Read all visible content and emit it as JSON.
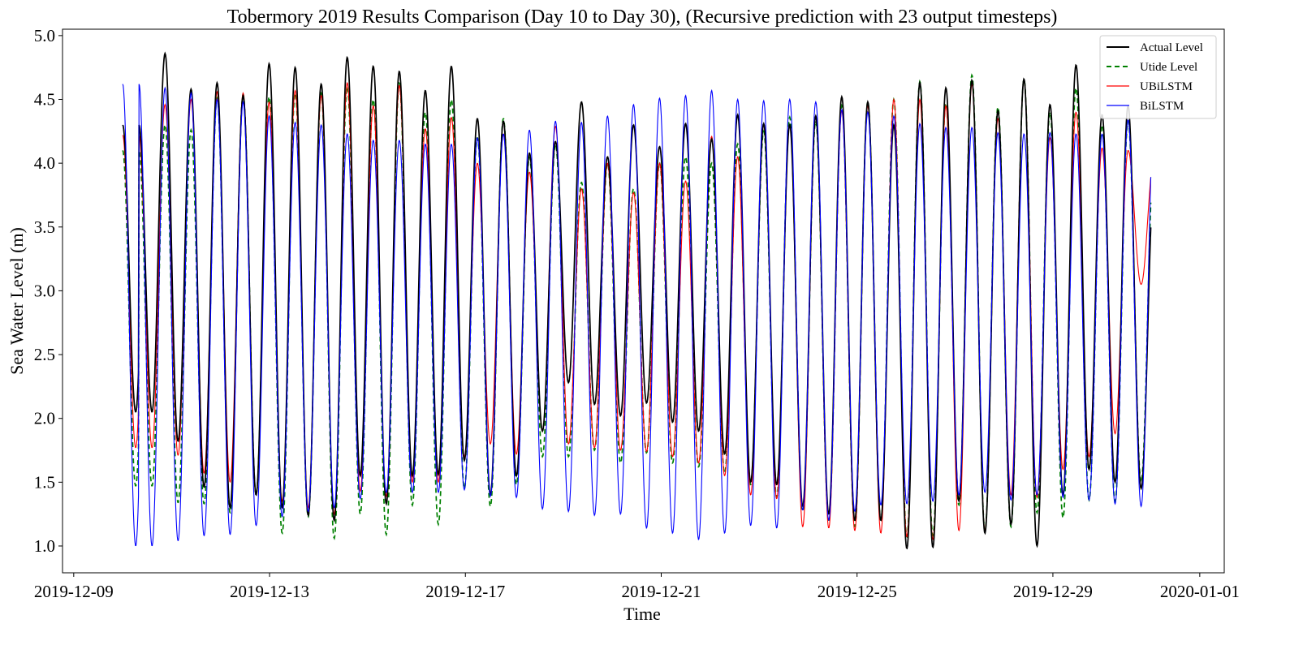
{
  "chart_data": {
    "type": "line",
    "title": "Tobermory 2019 Results Comparison (Day 10 to Day 30), (Recursive prediction with 23 output timesteps)",
    "xlabel": "Time",
    "ylabel": "Sea Water Level (m)",
    "xlim": [
      "2019-12-08T18:30",
      "2020-01-01T12:00"
    ],
    "ylim": [
      0.79,
      5.05
    ],
    "x_ticks": [
      "2019-12-09",
      "2019-12-13",
      "2019-12-17",
      "2019-12-21",
      "2019-12-25",
      "2019-12-29",
      "2020-01-01"
    ],
    "y_ticks": [
      "1.0",
      "1.5",
      "2.0",
      "2.5",
      "3.0",
      "3.5",
      "4.0",
      "4.5",
      "5.0"
    ],
    "grid": false,
    "legend_position": "upper right",
    "x_range": [
      "2019-12-10T00:00",
      "2019-12-31T00:00"
    ],
    "sampling": "hourly, semidiurnal tide (period ≈ 12.42 h)",
    "series": [
      {
        "name": "Actual Level",
        "color": "#000000",
        "style": "solid",
        "high_water_m": [
          4.3,
          4.86,
          4.58,
          4.63,
          4.53,
          4.78,
          4.75,
          4.62,
          4.83,
          4.76,
          4.72,
          4.57,
          4.76,
          4.35,
          4.33,
          4.08,
          4.17,
          4.48,
          4.05,
          4.3,
          4.13,
          4.31,
          4.19,
          4.38,
          4.31,
          4.3,
          4.37,
          4.52,
          4.48,
          4.3,
          4.63,
          4.59,
          4.65,
          4.41,
          4.66,
          4.46,
          4.77,
          4.38,
          4.45,
          3.86
        ],
        "low_water_m": [
          2.05,
          1.82,
          1.46,
          1.3,
          1.4,
          1.3,
          1.24,
          1.2,
          1.55,
          1.33,
          1.55,
          1.56,
          1.67,
          1.4,
          1.55,
          1.9,
          2.28,
          2.11,
          2.02,
          2.12,
          1.97,
          1.9,
          1.72,
          1.5,
          1.48,
          1.31,
          1.25,
          1.2,
          1.2,
          0.98,
          0.99,
          1.35,
          1.1,
          1.17,
          1.0,
          1.4,
          1.6,
          1.5,
          1.45
        ]
      },
      {
        "name": "Utide Level",
        "color": "#008000",
        "style": "dashed",
        "high_water_m": [
          4.1,
          4.3,
          4.26,
          4.51,
          4.54,
          4.52,
          4.55,
          4.55,
          4.6,
          4.5,
          4.63,
          4.4,
          4.5,
          4.2,
          4.35,
          4.05,
          4.15,
          3.85,
          4.0,
          3.8,
          4.0,
          4.05,
          4.0,
          4.15,
          4.25,
          4.36,
          4.33,
          4.45,
          4.48,
          4.5,
          4.64,
          4.47,
          4.69,
          4.44,
          4.66,
          4.4,
          4.59,
          4.3,
          4.33,
          4.08
        ],
        "low_water_m": [
          1.47,
          1.34,
          1.33,
          1.26,
          1.4,
          1.1,
          1.23,
          1.06,
          1.25,
          1.09,
          1.32,
          1.17,
          1.45,
          1.31,
          1.48,
          1.7,
          1.7,
          1.75,
          1.65,
          1.73,
          1.65,
          1.62,
          1.57,
          1.48,
          1.38,
          1.27,
          1.2,
          1.15,
          1.2,
          1.07,
          1.08,
          1.32,
          1.12,
          1.15,
          1.26,
          1.22,
          1.36,
          1.35,
          1.5
        ]
      },
      {
        "name": "UBiLSTM",
        "color": "#ff0000",
        "style": "solid",
        "high_water_m": [
          4.22,
          4.46,
          4.5,
          4.56,
          4.55,
          4.48,
          4.57,
          4.53,
          4.63,
          4.45,
          4.61,
          4.27,
          4.36,
          4.0,
          4.23,
          3.93,
          4.29,
          3.8,
          4.0,
          3.77,
          4.0,
          3.86,
          4.21,
          4.05,
          4.3,
          4.3,
          4.36,
          4.41,
          4.45,
          4.5,
          4.5,
          4.45,
          4.62,
          4.35,
          4.65,
          4.2,
          4.4,
          4.12,
          4.1,
          4.04
        ],
        "low_water_m": [
          1.77,
          1.71,
          1.57,
          1.5,
          1.4,
          1.35,
          1.3,
          1.25,
          1.43,
          1.39,
          1.5,
          1.5,
          1.7,
          1.8,
          1.72,
          1.9,
          1.8,
          1.77,
          1.75,
          1.74,
          1.7,
          1.65,
          1.55,
          1.4,
          1.37,
          1.15,
          1.14,
          1.12,
          1.1,
          1.07,
          1.05,
          1.12,
          1.12,
          1.4,
          1.38,
          1.6,
          1.7,
          1.88,
          3.05
        ]
      },
      {
        "name": "BiLSTM",
        "color": "#0000ff",
        "style": "solid",
        "high_water_m": [
          4.62,
          4.59,
          4.55,
          4.5,
          4.48,
          4.37,
          4.32,
          4.3,
          4.23,
          4.18,
          4.18,
          4.15,
          4.15,
          4.2,
          4.23,
          4.26,
          4.33,
          4.32,
          4.37,
          4.46,
          4.51,
          4.53,
          4.57,
          4.5,
          4.49,
          4.5,
          4.48,
          4.42,
          4.4,
          4.37,
          4.31,
          4.28,
          4.28,
          4.24,
          4.23,
          4.24,
          4.23,
          4.23,
          4.34,
          4.35
        ],
        "low_water_m": [
          1.0,
          1.04,
          1.08,
          1.09,
          1.16,
          1.23,
          1.27,
          1.3,
          1.37,
          1.42,
          1.42,
          1.42,
          1.44,
          1.39,
          1.38,
          1.29,
          1.27,
          1.24,
          1.25,
          1.14,
          1.1,
          1.05,
          1.1,
          1.16,
          1.14,
          1.28,
          1.2,
          1.27,
          1.32,
          1.33,
          1.35,
          1.4,
          1.42,
          1.36,
          1.4,
          1.38,
          1.36,
          1.33,
          1.31
        ]
      }
    ]
  }
}
